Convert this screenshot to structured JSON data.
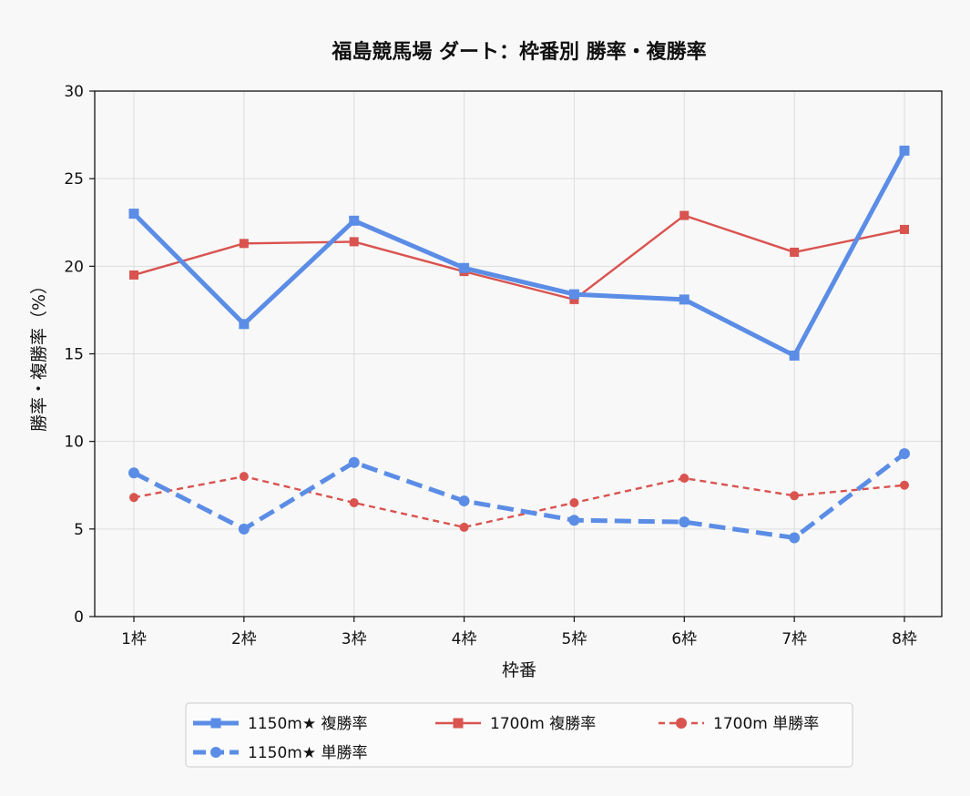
{
  "chart_data": {
    "type": "line",
    "title": "福島競馬場 ダート：枠番別 勝率・複勝率",
    "xlabel": "枠番",
    "ylabel": "勝率・複勝率（%）",
    "categories": [
      "1枠",
      "2枠",
      "3枠",
      "4枠",
      "5枠",
      "6枠",
      "7枠",
      "8枠"
    ],
    "ylim": [
      0,
      30
    ],
    "yticks": [
      0,
      5,
      10,
      15,
      20,
      25,
      30
    ],
    "grid": true,
    "legend_position": "bottom",
    "series": [
      {
        "name": "1150m★ 複勝率",
        "values": [
          23.0,
          16.7,
          22.6,
          19.9,
          18.4,
          18.1,
          14.9,
          26.6
        ],
        "color": "#5b8de6",
        "style": "solid",
        "marker": "square",
        "weight": "thick"
      },
      {
        "name": "1150m★ 単勝率",
        "values": [
          8.2,
          5.0,
          8.8,
          6.6,
          5.5,
          5.4,
          4.5,
          9.3
        ],
        "color": "#5b8de6",
        "style": "dashed",
        "marker": "circle",
        "weight": "thick"
      },
      {
        "name": "1700m 複勝率",
        "values": [
          19.5,
          21.3,
          21.4,
          19.7,
          18.1,
          22.9,
          20.8,
          22.1
        ],
        "color": "#d9534f",
        "style": "solid",
        "marker": "square",
        "weight": "thin"
      },
      {
        "name": "1700m 単勝率",
        "values": [
          6.8,
          8.0,
          6.5,
          5.1,
          6.5,
          7.9,
          6.9,
          7.5
        ],
        "color": "#d9534f",
        "style": "dashed",
        "marker": "circle",
        "weight": "thin"
      }
    ]
  }
}
